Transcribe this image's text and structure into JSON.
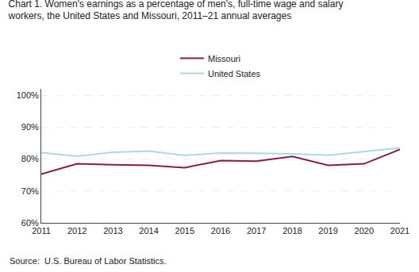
{
  "chart_data": {
    "type": "line",
    "title": "Chart 1. Women's earnings as a percentage of men's, full-time wage and salary\nworkers, the United States and Missouri, 2011–21 annual averages",
    "x": [
      2011,
      2012,
      2013,
      2014,
      2015,
      2016,
      2017,
      2018,
      2019,
      2020,
      2021
    ],
    "series": [
      {
        "name": "Missouri",
        "color": "#8B1A4A",
        "values": [
          75.3,
          78.5,
          78.2,
          78.0,
          77.3,
          79.5,
          79.3,
          80.8,
          78.0,
          78.5,
          83.0
        ]
      },
      {
        "name": "United States",
        "color": "#ADD8E6",
        "values": [
          82.0,
          80.9,
          82.1,
          82.5,
          81.1,
          81.9,
          81.8,
          81.6,
          81.2,
          82.3,
          83.5
        ]
      }
    ],
    "xlim": [
      2011,
      2021
    ],
    "xticks": [
      2011,
      2012,
      2013,
      2014,
      2015,
      2016,
      2017,
      2018,
      2019,
      2020,
      2021
    ],
    "ylim": [
      60,
      102
    ],
    "yticks": [
      {
        "value": 60,
        "label": "60%"
      },
      {
        "value": 70,
        "label": "70%"
      },
      {
        "value": 80,
        "label": "80%"
      },
      {
        "value": 90,
        "label": "90%"
      },
      {
        "value": 100,
        "label": "100%"
      }
    ],
    "grid": true,
    "legend": "top",
    "annotations": [
      "Source:  U.S. Bureau of Labor Statistics."
    ]
  }
}
